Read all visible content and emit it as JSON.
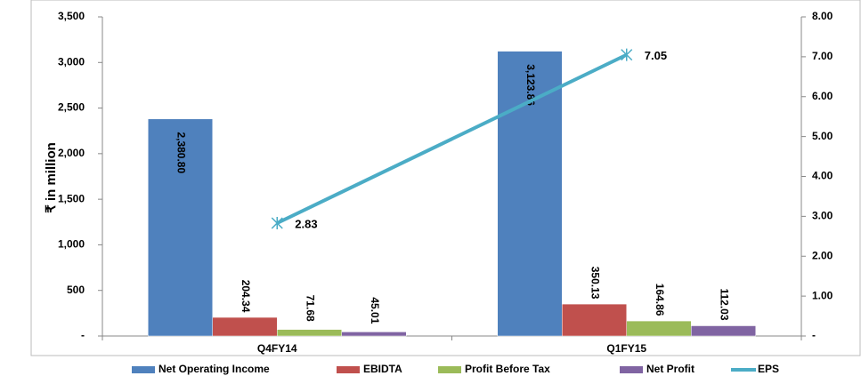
{
  "chart_data": {
    "type": "bar_line",
    "y_label": "₹ in million",
    "categories": [
      "Q4FY14",
      "Q1FY15"
    ],
    "series": [
      {
        "name": "Net Operating Income",
        "color": "#4f81bd",
        "values": [
          2380.8,
          3123.86
        ],
        "value_labels": [
          "2,380.80",
          "3,123.86"
        ],
        "type": "bar"
      },
      {
        "name": "EBIDTA",
        "color": "#c0504d",
        "values": [
          204.34,
          350.13
        ],
        "type": "bar"
      },
      {
        "name": "Profit Before Tax",
        "color": "#9bbb59",
        "values": [
          71.68,
          164.86
        ],
        "type": "bar"
      },
      {
        "name": "Net Profit",
        "color": "#8064a2",
        "values": [
          45.01,
          112.03
        ],
        "type": "bar"
      },
      {
        "name": "EPS",
        "color": "#4bacc6",
        "values": [
          2.83,
          7.05
        ],
        "type": "line",
        "axis": "y2"
      }
    ],
    "ylim": [
      0,
      3500
    ],
    "yticks": [
      {
        "value": 0,
        "label": "-"
      },
      500,
      {
        "value": 1000,
        "label": "1,000"
      },
      {
        "value": 1500,
        "label": "1,500"
      },
      {
        "value": 2000,
        "label": "2,000"
      },
      {
        "value": 2500,
        "label": "2,500"
      },
      {
        "value": 3000,
        "label": "3,000"
      },
      {
        "value": 3500,
        "label": "3,500"
      }
    ],
    "y2lim": [
      0,
      8
    ],
    "y2ticks": [
      {
        "value": 0,
        "label": "-"
      },
      {
        "value": 1,
        "label": "1.00"
      },
      {
        "value": 2,
        "label": "2.00"
      },
      {
        "value": 3,
        "label": "3.00"
      },
      {
        "value": 4,
        "label": "4.00"
      },
      {
        "value": 5,
        "label": "5.00"
      },
      {
        "value": 6,
        "label": "6.00"
      },
      {
        "value": 7,
        "label": "7.00"
      },
      {
        "value": 8,
        "label": "8.00"
      }
    ],
    "legend": "bottom"
  }
}
